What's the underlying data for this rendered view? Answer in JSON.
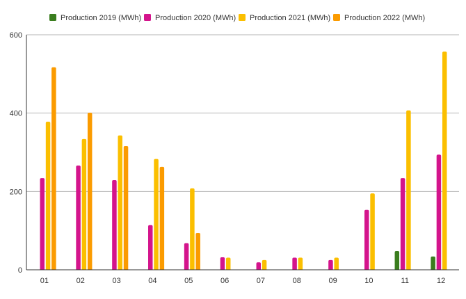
{
  "chart_data": {
    "type": "bar",
    "categories": [
      "01",
      "02",
      "03",
      "04",
      "05",
      "06",
      "07",
      "08",
      "09",
      "10",
      "11",
      "12"
    ],
    "series": [
      {
        "name": "Production 2019 (MWh)",
        "color": "#3a7d1e",
        "values": [
          null,
          null,
          null,
          null,
          null,
          null,
          null,
          null,
          null,
          null,
          48,
          34
        ]
      },
      {
        "name": "Production 2020 (MWh)",
        "color": "#d4148c",
        "values": [
          234,
          266,
          229,
          114,
          68,
          32,
          19,
          31,
          25,
          153,
          234,
          294
        ]
      },
      {
        "name": "Production 2021 (MWh)",
        "color": "#fbbf00",
        "values": [
          378,
          334,
          343,
          283,
          208,
          31,
          25,
          31,
          31,
          195,
          407,
          557
        ]
      },
      {
        "name": "Production 2022 (MWh)",
        "color": "#fb9b00",
        "values": [
          517,
          401,
          316,
          263,
          94,
          null,
          null,
          null,
          null,
          null,
          null,
          null
        ]
      }
    ],
    "ylim": [
      0,
      600
    ],
    "yticks": [
      0,
      200,
      400,
      600
    ],
    "grid": true,
    "legend_position": "top",
    "title": "",
    "xlabel": "",
    "ylabel": ""
  }
}
